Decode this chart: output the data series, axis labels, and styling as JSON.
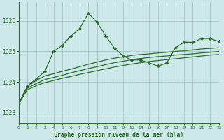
{
  "background_color": "#cce8e8",
  "grid_color": "#aacccc",
  "line_color": "#2d6e2d",
  "title": "Graphe pression niveau de la mer (hPa)",
  "xlim": [
    0,
    23
  ],
  "ylim": [
    1022.65,
    1026.6
  ],
  "yticks": [
    1023,
    1024,
    1025,
    1026
  ],
  "xticks": [
    0,
    1,
    2,
    3,
    4,
    5,
    6,
    7,
    8,
    9,
    10,
    11,
    12,
    13,
    14,
    15,
    16,
    17,
    18,
    19,
    20,
    21,
    22,
    23
  ],
  "series_marked": [
    1023.3,
    1023.87,
    1024.1,
    1024.35,
    1025.0,
    1025.2,
    1025.5,
    1025.75,
    1026.25,
    1025.95,
    1025.5,
    1025.1,
    1024.85,
    1024.72,
    1024.72,
    1024.62,
    1024.52,
    1024.62,
    1025.12,
    1025.3,
    1025.3,
    1025.42,
    1025.42,
    1025.32
  ],
  "series_flat1": [
    1023.3,
    1023.85,
    1024.05,
    1024.2,
    1024.27,
    1024.35,
    1024.42,
    1024.5,
    1024.58,
    1024.65,
    1024.72,
    1024.78,
    1024.82,
    1024.87,
    1024.9,
    1024.92,
    1024.95,
    1024.97,
    1025.0,
    1025.02,
    1025.05,
    1025.08,
    1025.1,
    1025.12
  ],
  "series_flat2": [
    1023.3,
    1023.8,
    1023.95,
    1024.08,
    1024.15,
    1024.22,
    1024.3,
    1024.37,
    1024.44,
    1024.5,
    1024.57,
    1024.63,
    1024.68,
    1024.73,
    1024.77,
    1024.8,
    1024.83,
    1024.85,
    1024.88,
    1024.9,
    1024.92,
    1024.95,
    1024.97,
    1025.0
  ],
  "series_flat3": [
    1023.3,
    1023.75,
    1023.88,
    1023.98,
    1024.05,
    1024.12,
    1024.18,
    1024.25,
    1024.31,
    1024.37,
    1024.43,
    1024.49,
    1024.54,
    1024.59,
    1024.63,
    1024.67,
    1024.7,
    1024.73,
    1024.76,
    1024.79,
    1024.82,
    1024.85,
    1024.88,
    1024.9
  ]
}
